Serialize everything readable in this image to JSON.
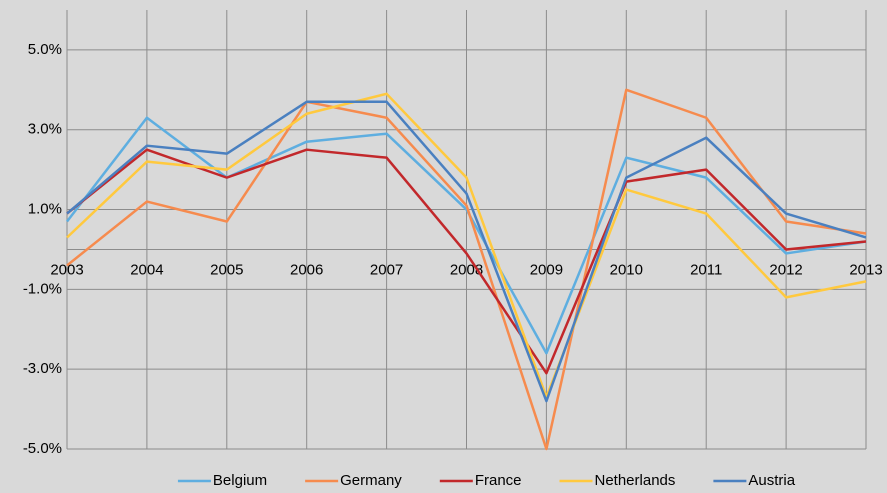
{
  "chart_data": {
    "type": "line",
    "categories": [
      "2003",
      "2004",
      "2005",
      "2006",
      "2007",
      "2008",
      "2009",
      "2010",
      "2011",
      "2012",
      "2013"
    ],
    "series": [
      {
        "name": "Belgium",
        "color": "#5eaee0",
        "values": [
          0.7,
          3.3,
          1.8,
          2.7,
          2.9,
          1.0,
          -2.6,
          2.3,
          1.8,
          -0.1,
          0.2
        ]
      },
      {
        "name": "Germany",
        "color": "#f68b4e",
        "values": [
          -0.4,
          1.2,
          0.7,
          3.7,
          3.3,
          1.1,
          -5.0,
          4.0,
          3.3,
          0.7,
          0.4
        ]
      },
      {
        "name": "France",
        "color": "#c2282b",
        "values": [
          0.9,
          2.5,
          1.8,
          2.5,
          2.3,
          -0.1,
          -3.1,
          1.7,
          2.0,
          0.0,
          0.2
        ]
      },
      {
        "name": "Netherlands",
        "color": "#ffc93e",
        "values": [
          0.3,
          2.2,
          2.0,
          3.4,
          3.9,
          1.8,
          -3.7,
          1.5,
          0.9,
          -1.2,
          -0.8
        ]
      },
      {
        "name": "Austria",
        "color": "#4a80c0",
        "values": [
          0.9,
          2.6,
          2.4,
          3.7,
          3.7,
          1.4,
          -3.8,
          1.8,
          2.8,
          0.9,
          0.3
        ]
      }
    ],
    "ylim": [
      -5,
      6
    ],
    "yticks": [
      {
        "value": -5,
        "label": "-5.0%"
      },
      {
        "value": -3,
        "label": "-3.0%"
      },
      {
        "value": -1,
        "label": "-1.0%"
      },
      {
        "value": 1,
        "label": "1.0%"
      },
      {
        "value": 3,
        "label": "3.0%"
      },
      {
        "value": 5,
        "label": "5.0%"
      }
    ],
    "grid": true,
    "legend": "bottom"
  }
}
